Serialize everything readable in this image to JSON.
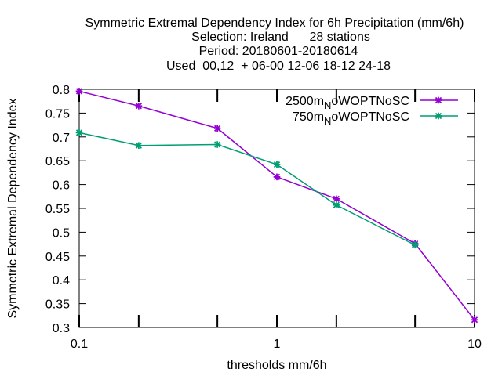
{
  "chart_data": {
    "type": "line",
    "title_lines": [
      "Symmetric Extremal Dependency Index  for 6h Precipitation (mm/6h)",
      "Selection: Ireland      28 stations",
      "Period: 20180601-20180614",
      "Used  00,12  + 06-00 12-06 18-12 24-18"
    ],
    "xlabel": "thresholds mm/6h",
    "ylabel": "Symmetric Extremal Dependency Index",
    "x_scale": "log",
    "xlim": [
      0.1,
      10
    ],
    "ylim": [
      0.3,
      0.8
    ],
    "x_ticks": [
      {
        "value": 0.1,
        "label": "0.1"
      },
      {
        "value": 1,
        "label": "1"
      },
      {
        "value": 10,
        "label": "10"
      }
    ],
    "x_minor_ticks": [
      0.2,
      0.5,
      2,
      5
    ],
    "y_ticks": [
      {
        "value": 0.3,
        "label": "0.3"
      },
      {
        "value": 0.35,
        "label": "0.35"
      },
      {
        "value": 0.4,
        "label": "0.4"
      },
      {
        "value": 0.45,
        "label": "0.45"
      },
      {
        "value": 0.5,
        "label": "0.5"
      },
      {
        "value": 0.55,
        "label": "0.55"
      },
      {
        "value": 0.6,
        "label": "0.6"
      },
      {
        "value": 0.65,
        "label": "0.65"
      },
      {
        "value": 0.7,
        "label": "0.7"
      },
      {
        "value": 0.75,
        "label": "0.75"
      },
      {
        "value": 0.8,
        "label": "0.8"
      }
    ],
    "grid": false,
    "legend_position": "top-right",
    "series": [
      {
        "name_main": "2500m",
        "name_sub": "N",
        "name_rest": "oWOPTNoSC",
        "color": "#9400d3",
        "x": [
          0.1,
          0.2,
          0.5,
          1,
          2,
          5,
          10
        ],
        "y": [
          0.796,
          0.765,
          0.718,
          0.616,
          0.57,
          0.476,
          0.316
        ]
      },
      {
        "name_main": "750m",
        "name_sub": "N",
        "name_rest": "oWOPTNoSC",
        "color": "#009e73",
        "x": [
          0.1,
          0.2,
          0.5,
          1,
          2,
          5
        ],
        "y": [
          0.709,
          0.682,
          0.684,
          0.642,
          0.557,
          0.473
        ]
      }
    ]
  }
}
